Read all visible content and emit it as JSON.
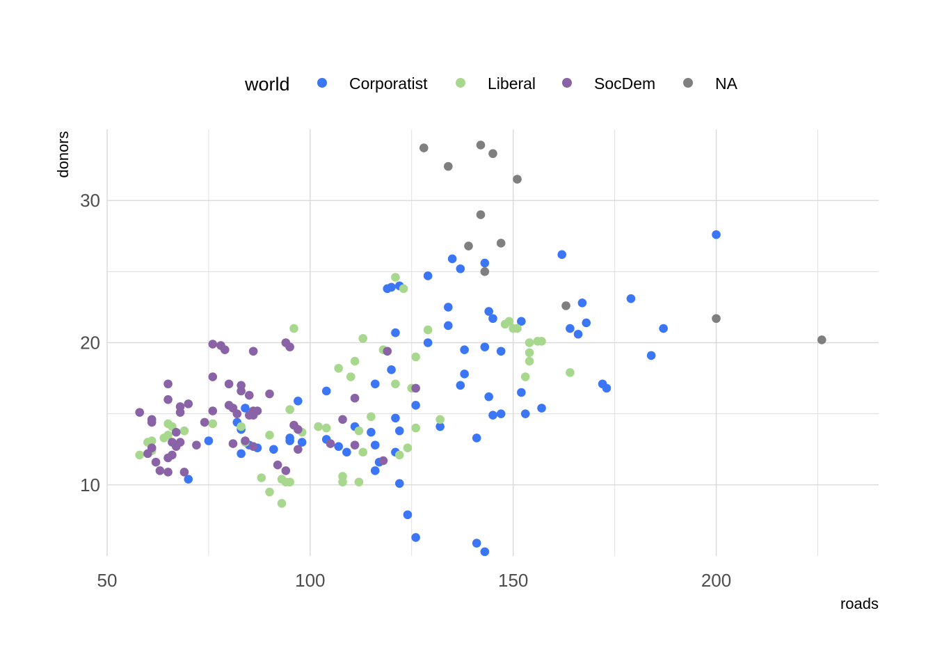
{
  "colors": {
    "Corporatist": "#3B76F6",
    "Liberal": "#A8D78E",
    "SocDem": "#8A63A6",
    "NA": "#7F7F7F",
    "grid": "#d9d9d9",
    "background": "#ffffff"
  },
  "chart_data": {
    "type": "scatter",
    "xlabel": "roads",
    "ylabel": "donors",
    "xlim": [
      50,
      240
    ],
    "ylim": [
      5,
      35
    ],
    "x_ticks": [
      50,
      100,
      150,
      200
    ],
    "x_minor_ticks": [
      75,
      125,
      175,
      225
    ],
    "y_ticks": [
      10,
      20,
      30
    ],
    "y_minor_ticks": [
      15,
      25
    ],
    "grid": true,
    "legend": {
      "title": "world",
      "position": "top",
      "entries": [
        "Corporatist",
        "Liberal",
        "SocDem",
        "NA"
      ]
    },
    "series": [
      {
        "name": "Corporatist",
        "points": [
          [
            200,
            27.6
          ],
          [
            162,
            26.2
          ],
          [
            135,
            25.9
          ],
          [
            143,
            25.6
          ],
          [
            137,
            25.2
          ],
          [
            129,
            24.7
          ],
          [
            122,
            24.0
          ],
          [
            120,
            23.9
          ],
          [
            119,
            23.8
          ],
          [
            179,
            23.1
          ],
          [
            167,
            22.8
          ],
          [
            134,
            22.5
          ],
          [
            144,
            22.2
          ],
          [
            145,
            21.7
          ],
          [
            152,
            21.5
          ],
          [
            168,
            21.4
          ],
          [
            134,
            21.2
          ],
          [
            187,
            21.0
          ],
          [
            164,
            21.0
          ],
          [
            121,
            20.7
          ],
          [
            166,
            20.6
          ],
          [
            129,
            20.0
          ],
          [
            143,
            19.7
          ],
          [
            138,
            19.5
          ],
          [
            147,
            19.4
          ],
          [
            184,
            19.1
          ],
          [
            120,
            18.1
          ],
          [
            138,
            17.8
          ],
          [
            116,
            17.1
          ],
          [
            137,
            17.0
          ],
          [
            172,
            17.1
          ],
          [
            173,
            16.8
          ],
          [
            104,
            16.6
          ],
          [
            152,
            16.5
          ],
          [
            144,
            16.2
          ],
          [
            97,
            15.9
          ],
          [
            126,
            15.6
          ],
          [
            84,
            15.4
          ],
          [
            157,
            15.4
          ],
          [
            153,
            15.0
          ],
          [
            145,
            14.9
          ],
          [
            147,
            15.0
          ],
          [
            121,
            14.7
          ],
          [
            82,
            14.4
          ],
          [
            111,
            14.1
          ],
          [
            132,
            14.1
          ],
          [
            83,
            13.9
          ],
          [
            122,
            13.8
          ],
          [
            115,
            13.7
          ],
          [
            95,
            13.3
          ],
          [
            141,
            13.3
          ],
          [
            75,
            13.1
          ],
          [
            104,
            13.2
          ],
          [
            98,
            13.0
          ],
          [
            95,
            13.1
          ],
          [
            85,
            12.8
          ],
          [
            116,
            12.8
          ],
          [
            107,
            12.7
          ],
          [
            87,
            12.6
          ],
          [
            91,
            12.5
          ],
          [
            109,
            12.3
          ],
          [
            121,
            12.3
          ],
          [
            83,
            12.2
          ],
          [
            117,
            11.6
          ],
          [
            116,
            11.0
          ],
          [
            70,
            10.4
          ],
          [
            122,
            10.1
          ],
          [
            124,
            7.9
          ],
          [
            126,
            6.3
          ],
          [
            141,
            5.9
          ],
          [
            143,
            5.3
          ]
        ]
      },
      {
        "name": "Liberal",
        "points": [
          [
            121,
            24.6
          ],
          [
            123,
            23.8
          ],
          [
            96,
            21.0
          ],
          [
            149,
            21.5
          ],
          [
            148,
            21.3
          ],
          [
            150,
            21.0
          ],
          [
            151,
            21.0
          ],
          [
            129,
            20.9
          ],
          [
            113,
            20.3
          ],
          [
            157,
            20.1
          ],
          [
            156,
            20.1
          ],
          [
            154,
            20.0
          ],
          [
            118,
            19.5
          ],
          [
            154,
            19.3
          ],
          [
            126,
            19.0
          ],
          [
            154,
            18.7
          ],
          [
            111,
            18.7
          ],
          [
            107,
            18.2
          ],
          [
            110,
            17.6
          ],
          [
            153,
            17.6
          ],
          [
            164,
            17.9
          ],
          [
            121,
            17.1
          ],
          [
            125,
            16.8
          ],
          [
            95,
            15.3
          ],
          [
            115,
            14.8
          ],
          [
            132,
            14.6
          ],
          [
            76,
            14.3
          ],
          [
            65,
            14.3
          ],
          [
            66,
            14.1
          ],
          [
            83,
            14.1
          ],
          [
            102,
            14.1
          ],
          [
            104,
            14.0
          ],
          [
            126,
            14.0
          ],
          [
            69,
            13.8
          ],
          [
            112,
            13.8
          ],
          [
            98,
            13.7
          ],
          [
            65,
            13.5
          ],
          [
            90,
            13.5
          ],
          [
            64,
            13.3
          ],
          [
            61,
            13.1
          ],
          [
            60,
            13.0
          ],
          [
            84,
            13.0
          ],
          [
            124,
            12.6
          ],
          [
            61,
            12.4
          ],
          [
            113,
            12.3
          ],
          [
            58,
            12.1
          ],
          [
            122,
            12.1
          ],
          [
            88,
            10.5
          ],
          [
            108,
            10.6
          ],
          [
            93,
            10.4
          ],
          [
            94,
            10.2
          ],
          [
            95,
            10.2
          ],
          [
            108,
            10.2
          ],
          [
            112,
            10.2
          ],
          [
            90,
            9.5
          ],
          [
            93,
            8.7
          ]
        ]
      },
      {
        "name": "SocDem",
        "points": [
          [
            94,
            20.0
          ],
          [
            76,
            19.9
          ],
          [
            78,
            19.8
          ],
          [
            95,
            19.7
          ],
          [
            79,
            19.5
          ],
          [
            86,
            19.4
          ],
          [
            119,
            19.4
          ],
          [
            76,
            17.6
          ],
          [
            65,
            17.1
          ],
          [
            80,
            17.1
          ],
          [
            83,
            17.0
          ],
          [
            126,
            16.8
          ],
          [
            83,
            16.6
          ],
          [
            85,
            16.3
          ],
          [
            90,
            16.4
          ],
          [
            111,
            16.1
          ],
          [
            65,
            16.0
          ],
          [
            70,
            15.7
          ],
          [
            80,
            15.6
          ],
          [
            68,
            15.5
          ],
          [
            81,
            15.4
          ],
          [
            76,
            15.2
          ],
          [
            86,
            15.2
          ],
          [
            87,
            15.2
          ],
          [
            58,
            15.1
          ],
          [
            68,
            15.1
          ],
          [
            82,
            15.0
          ],
          [
            85,
            14.9
          ],
          [
            86,
            14.9
          ],
          [
            61,
            14.6
          ],
          [
            108,
            14.6
          ],
          [
            61,
            14.4
          ],
          [
            74,
            14.4
          ],
          [
            96,
            14.2
          ],
          [
            97,
            13.9
          ],
          [
            67,
            13.7
          ],
          [
            84,
            13.1
          ],
          [
            66,
            13.0
          ],
          [
            68,
            13.0
          ],
          [
            81,
            12.9
          ],
          [
            105,
            12.9
          ],
          [
            72,
            12.8
          ],
          [
            111,
            12.8
          ],
          [
            67,
            12.7
          ],
          [
            86,
            12.7
          ],
          [
            97,
            12.5
          ],
          [
            61,
            12.6
          ],
          [
            60,
            12.2
          ],
          [
            66,
            12.1
          ],
          [
            65,
            11.9
          ],
          [
            62,
            11.6
          ],
          [
            118,
            11.7
          ],
          [
            92,
            11.4
          ],
          [
            63,
            11.0
          ],
          [
            65,
            10.9
          ],
          [
            69,
            10.9
          ],
          [
            94,
            11.0
          ]
        ]
      },
      {
        "name": "NA",
        "points": [
          [
            142,
            33.9
          ],
          [
            128,
            33.7
          ],
          [
            145,
            33.3
          ],
          [
            134,
            32.4
          ],
          [
            151,
            31.5
          ],
          [
            142,
            29.0
          ],
          [
            139,
            26.8
          ],
          [
            147,
            27.0
          ],
          [
            143,
            25.0
          ],
          [
            163,
            22.6
          ],
          [
            200,
            21.7
          ],
          [
            226,
            20.2
          ]
        ]
      }
    ]
  }
}
